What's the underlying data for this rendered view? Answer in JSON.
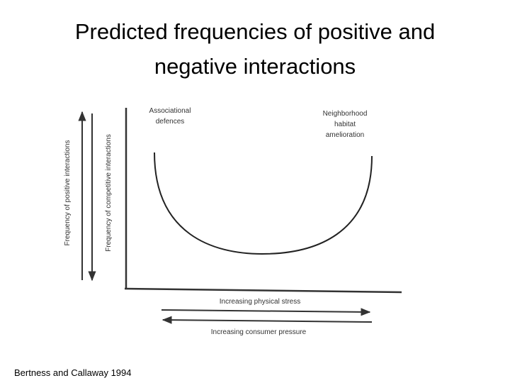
{
  "title": [
    "Predicted frequencies of positive and",
    "negative interactions"
  ],
  "y_axis_labels": [
    "Frequency of positive interactions",
    "Frequency of competitive interactions"
  ],
  "annotations": {
    "left": [
      "Associational",
      "defences"
    ],
    "right": [
      "Neighborhood",
      "habitat",
      "amelioration"
    ]
  },
  "x_axis_labels": [
    "Increasing physical stress",
    "Increasing consumer pressure"
  ],
  "citation": "Bertness and Callaway 1994"
}
